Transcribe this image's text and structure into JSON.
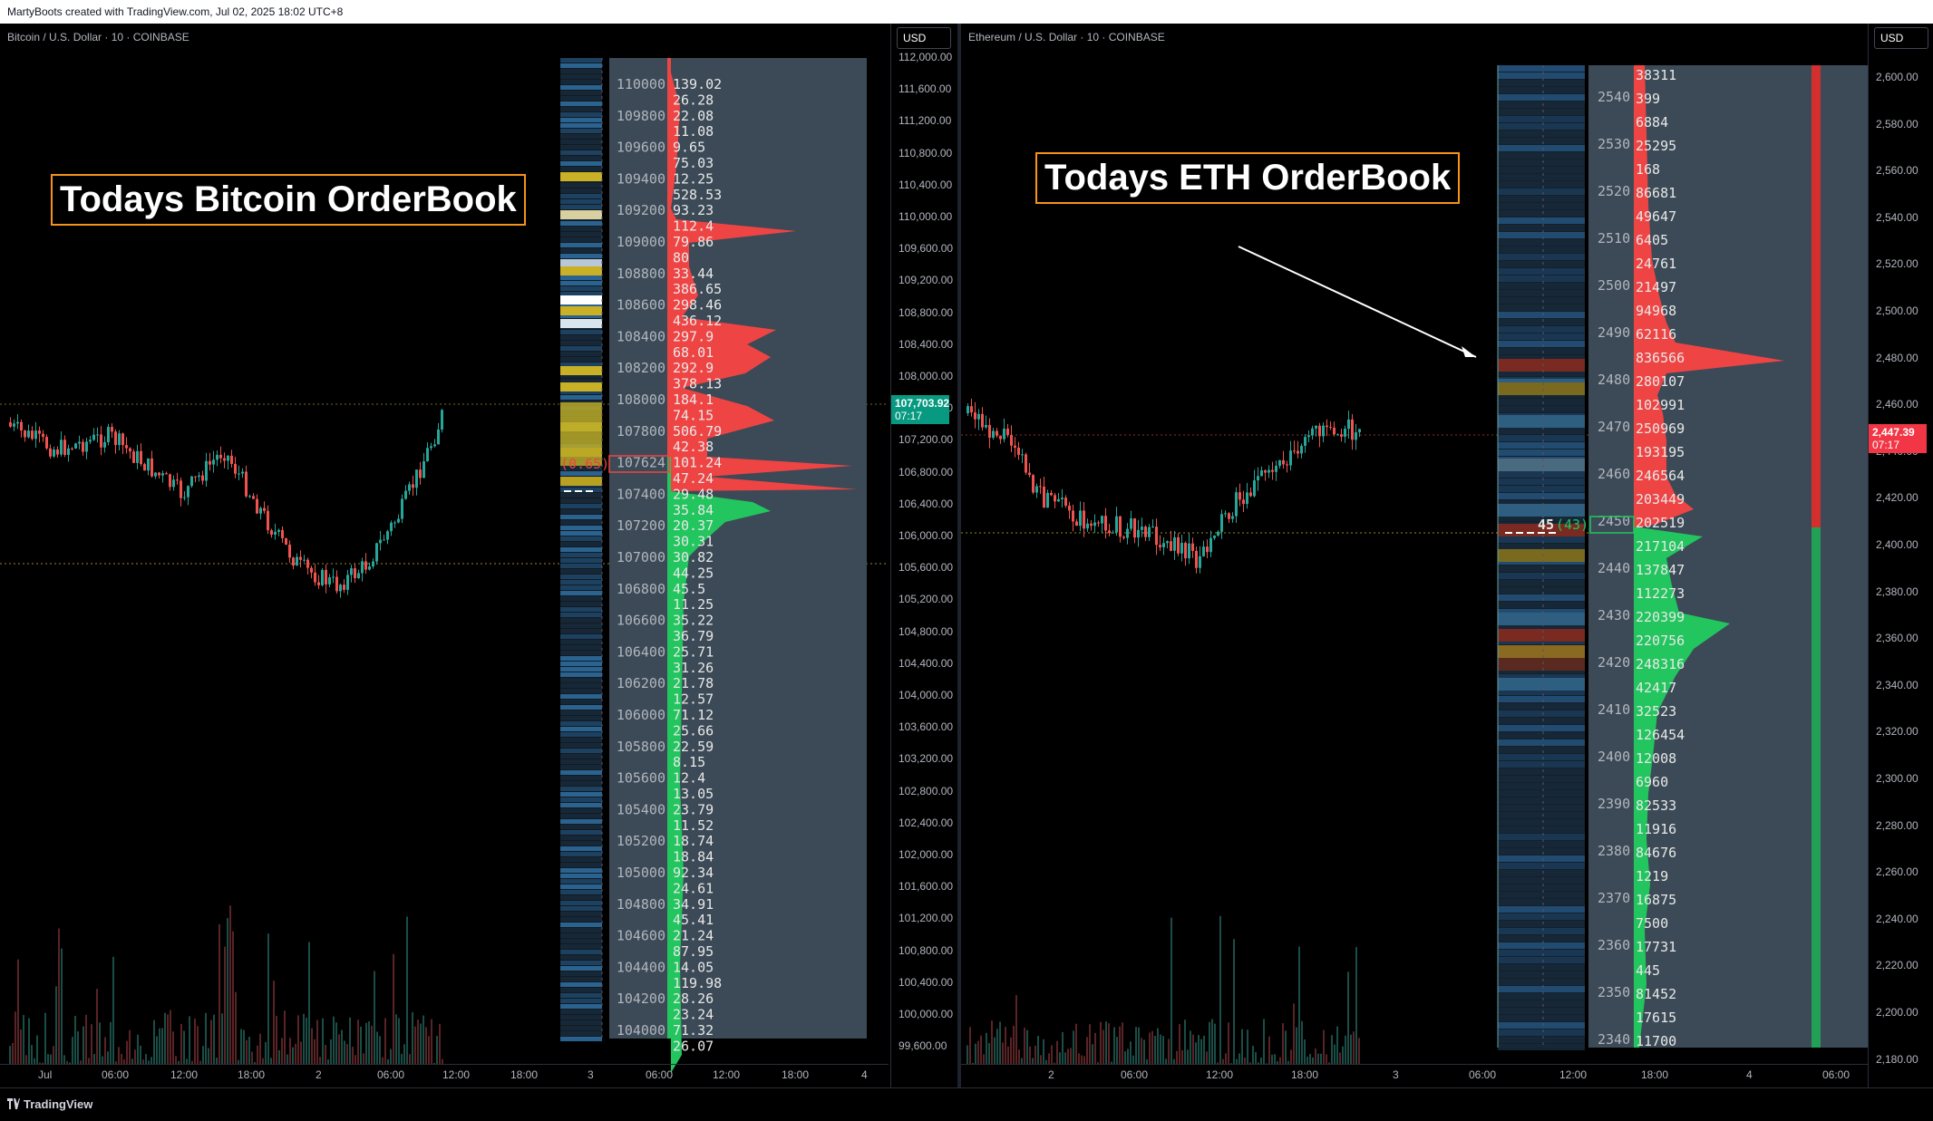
{
  "header": {
    "credit": "MartyBoots created with TradingView.com, Jul 02, 2025 18:02 UTC+8"
  },
  "footer": {
    "brand": "TradingView"
  },
  "colors": {
    "up": "#22c55e",
    "down": "#ef4444",
    "orange_box": "#f7931a",
    "heat_yellow": "#c9b025",
    "panel": "#3b4a56"
  },
  "btc": {
    "symbol": "Bitcoin / U.S. Dollar · 10 · COINBASE",
    "title": "Todays Bitcoin OrderBook",
    "currency": "USD",
    "price_label": "107,703.92",
    "countdown": "07:17",
    "axis_ticks": [
      "112,000.00",
      "111,600.00",
      "111,200.00",
      "110,800.00",
      "110,400.00",
      "110,000.00",
      "109,600.00",
      "109,200.00",
      "108,800.00",
      "108,400.00",
      "108,000.00",
      "107,600.00",
      "107,200.00",
      "106,800.00",
      "106,400.00",
      "106,000.00",
      "105,600.00",
      "105,200.00",
      "104,800.00",
      "104,400.00",
      "104,000.00",
      "103,600.00",
      "103,200.00",
      "102,800.00",
      "102,400.00",
      "102,000.00",
      "101,600.00",
      "101,200.00",
      "100,800.00",
      "100,400.00",
      "100,000.00",
      "99,600.00"
    ],
    "time_ticks": [
      "Jul",
      "06:00",
      "12:00",
      "18:00",
      "2",
      "06:00",
      "12:00",
      "18:00",
      "3",
      "06:00",
      "12:00",
      "18:00",
      "4"
    ],
    "ob_prices": [
      "110000",
      "109800",
      "109600",
      "109400",
      "109200",
      "109000",
      "108800",
      "108600",
      "108400",
      "108200",
      "108000",
      "107800",
      "107624",
      "107400",
      "107200",
      "107000",
      "106800",
      "106600",
      "106400",
      "106200",
      "106000",
      "105800",
      "105600",
      "105400",
      "105200",
      "105000",
      "104800",
      "104600",
      "104400",
      "104200",
      "104000"
    ],
    "ob_sizes": [
      "139.02",
      "26.28",
      "22.08",
      "11.08",
      "9.65",
      "75.03",
      "12.25",
      "528.53",
      "93.23",
      "112.4",
      "79.86",
      "80",
      "33.44",
      "386.65",
      "298.46",
      "436.12",
      "297.9",
      "68.01",
      "292.9",
      "378.13",
      "184.1",
      "74.15",
      "506.79",
      "42.38",
      "101.24",
      "47.24",
      "29.48",
      "35.84",
      "20.37",
      "30.31",
      "30.82",
      "44.25",
      "45.5",
      "11.25",
      "35.22",
      "36.79",
      "25.71",
      "31.26",
      "21.78",
      "12.57",
      "71.12",
      "25.66",
      "22.59",
      "8.15",
      "12.4",
      "13.05",
      "23.79",
      "11.52",
      "18.74",
      "18.84",
      "92.34",
      "24.61",
      "34.91",
      "45.41",
      "21.24",
      "87.95",
      "14.05",
      "119.98",
      "28.26",
      "23.24",
      "71.32",
      "26.07"
    ],
    "imbalance": "(0.65)"
  },
  "eth": {
    "symbol": "Ethereum / U.S. Dollar · 10 · COINBASE",
    "title": "Todays ETH OrderBook",
    "currency": "USD",
    "price_label": "2,447.39",
    "countdown": "07:17",
    "axis_ticks": [
      "2,600.00",
      "2,580.00",
      "2,560.00",
      "2,540.00",
      "2,520.00",
      "2,500.00",
      "2,480.00",
      "2,460.00",
      "2,440.00",
      "2,420.00",
      "2,400.00",
      "2,380.00",
      "2,360.00",
      "2,340.00",
      "2,320.00",
      "2,300.00",
      "2,280.00",
      "2,260.00",
      "2,240.00",
      "2,220.00",
      "2,200.00",
      "2,180.00"
    ],
    "time_ticks": [
      "2",
      "06:00",
      "12:00",
      "18:00",
      "3",
      "06:00",
      "12:00",
      "18:00",
      "4",
      "06:00"
    ],
    "ob_prices": [
      "2540",
      "2530",
      "2520",
      "2510",
      "2500",
      "2490",
      "2480",
      "2470",
      "2460",
      "2450",
      "2440",
      "2430",
      "2420",
      "2410",
      "2400",
      "2390",
      "2380",
      "2370",
      "2360",
      "2350",
      "2340"
    ],
    "ob_sizes": [
      "38311",
      "399",
      "6884",
      "25295",
      "168",
      "86681",
      "49647",
      "6405",
      "24761",
      "21497",
      "94968",
      "62116",
      "836566",
      "280107",
      "102991",
      "250969",
      "193195",
      "246564",
      "203449",
      "202519",
      "217104",
      "137847",
      "112273",
      "220399",
      "220756",
      "248316",
      "42417",
      "32523",
      "126454",
      "12008",
      "6960",
      "82533",
      "11916",
      "84676",
      "1219",
      "16875",
      "7500",
      "17731",
      "445",
      "81452",
      "17615",
      "11700"
    ],
    "marker": "45",
    "marker_sub": "(43)"
  }
}
